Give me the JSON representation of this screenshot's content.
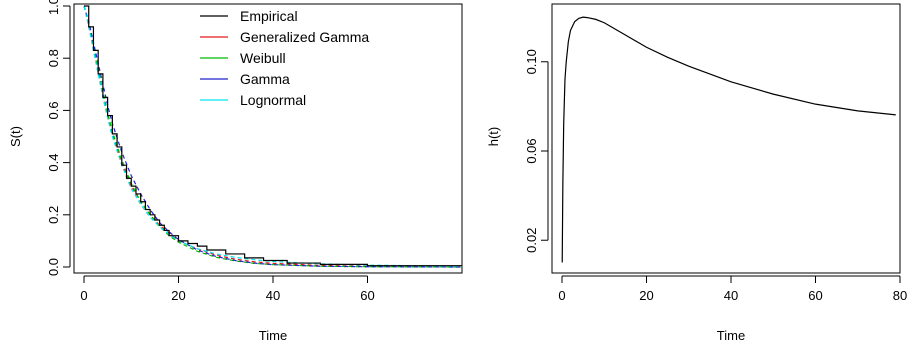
{
  "chart_data": [
    {
      "type": "line",
      "title": "",
      "xlabel": "Time",
      "ylabel": "S(t)",
      "xlim": [
        0,
        80
      ],
      "ylim": [
        0.0,
        1.0
      ],
      "xticks": [
        0,
        20,
        40,
        60
      ],
      "xtick_labels": [
        "0",
        "20",
        "40",
        "60"
      ],
      "yticks": [
        0.0,
        0.2,
        0.4,
        0.6,
        0.8,
        1.0
      ],
      "ytick_labels": [
        "0.0",
        "0.2",
        "0.4",
        "0.6",
        "0.8",
        "1.0"
      ],
      "legend_position": "top-right",
      "grid": false,
      "series": [
        {
          "name": "Empirical",
          "color": "#000000",
          "style": "step",
          "x": [
            0,
            1,
            2,
            3,
            4,
            5,
            6,
            7,
            8,
            9,
            10,
            11,
            12,
            13,
            14,
            15,
            16,
            17,
            18,
            20,
            22,
            24,
            26,
            30,
            34,
            38,
            43,
            50,
            60,
            80
          ],
          "y": [
            1.0,
            0.92,
            0.83,
            0.74,
            0.65,
            0.58,
            0.51,
            0.46,
            0.39,
            0.34,
            0.31,
            0.28,
            0.25,
            0.22,
            0.2,
            0.18,
            0.16,
            0.14,
            0.12,
            0.1,
            0.09,
            0.08,
            0.065,
            0.05,
            0.035,
            0.025,
            0.015,
            0.01,
            0.005,
            0.005
          ]
        },
        {
          "name": "Generalized Gamma",
          "color": "#e41a1c",
          "style": "dashed",
          "x": [
            0,
            1,
            2,
            3,
            4,
            5,
            6,
            8,
            10,
            12,
            14,
            16,
            18,
            20,
            24,
            28,
            32,
            36,
            40,
            50,
            60,
            80
          ],
          "y": [
            1.0,
            0.93,
            0.84,
            0.75,
            0.66,
            0.58,
            0.51,
            0.4,
            0.31,
            0.25,
            0.2,
            0.16,
            0.13,
            0.1,
            0.07,
            0.045,
            0.03,
            0.02,
            0.014,
            0.006,
            0.003,
            0.001
          ]
        },
        {
          "name": "Weibull",
          "color": "#00bb00",
          "style": "dashed",
          "x": [
            0,
            1,
            2,
            3,
            4,
            5,
            6,
            8,
            10,
            12,
            14,
            16,
            18,
            20,
            24,
            28,
            32,
            36,
            40,
            50,
            60,
            80
          ],
          "y": [
            1.0,
            0.93,
            0.85,
            0.76,
            0.67,
            0.59,
            0.52,
            0.41,
            0.32,
            0.25,
            0.2,
            0.155,
            0.12,
            0.095,
            0.06,
            0.037,
            0.023,
            0.014,
            0.009,
            0.003,
            0.001,
            0.0
          ]
        },
        {
          "name": "Gamma",
          "color": "#2222cc",
          "style": "dashed",
          "x": [
            0,
            1,
            2,
            3,
            4,
            5,
            6,
            8,
            10,
            12,
            14,
            16,
            18,
            20,
            24,
            28,
            32,
            36,
            40,
            50,
            60,
            80
          ],
          "y": [
            1.0,
            0.94,
            0.86,
            0.78,
            0.7,
            0.62,
            0.55,
            0.44,
            0.35,
            0.28,
            0.22,
            0.17,
            0.135,
            0.105,
            0.065,
            0.04,
            0.025,
            0.015,
            0.009,
            0.003,
            0.001,
            0.0
          ]
        },
        {
          "name": "Lognormal",
          "color": "#00e5ee",
          "style": "dashed",
          "x": [
            0,
            1,
            2,
            3,
            4,
            5,
            6,
            8,
            10,
            12,
            14,
            16,
            18,
            20,
            24,
            28,
            32,
            36,
            40,
            50,
            60,
            80
          ],
          "y": [
            1.0,
            0.92,
            0.83,
            0.74,
            0.65,
            0.57,
            0.5,
            0.39,
            0.3,
            0.24,
            0.19,
            0.155,
            0.125,
            0.1,
            0.07,
            0.05,
            0.037,
            0.028,
            0.021,
            0.012,
            0.007,
            0.003
          ]
        }
      ]
    },
    {
      "type": "line",
      "title": "",
      "xlabel": "Time",
      "ylabel": "h(t)",
      "xlim": [
        0,
        80
      ],
      "ylim": [
        0.008,
        0.125
      ],
      "xticks": [
        0,
        20,
        40,
        60,
        80
      ],
      "xtick_labels": [
        "0",
        "20",
        "40",
        "60",
        "80"
      ],
      "yticks": [
        0.02,
        0.06,
        0.1
      ],
      "ytick_labels": [
        "0.02",
        "0.06",
        "0.10"
      ],
      "grid": false,
      "series": [
        {
          "color": "#000000",
          "style": "solid",
          "x": [
            0.05,
            0.2,
            0.4,
            0.7,
            1.0,
            1.5,
            2.0,
            3.0,
            4.0,
            5.0,
            6.0,
            8.0,
            10.0,
            15.0,
            20.0,
            25.0,
            30.0,
            40.0,
            50.0,
            60.0,
            70.0,
            79.0
          ],
          "y": [
            0.01,
            0.045,
            0.072,
            0.092,
            0.1,
            0.109,
            0.114,
            0.118,
            0.1195,
            0.12,
            0.1198,
            0.119,
            0.1175,
            0.112,
            0.1065,
            0.102,
            0.098,
            0.091,
            0.0855,
            0.081,
            0.078,
            0.0762
          ]
        }
      ]
    }
  ]
}
